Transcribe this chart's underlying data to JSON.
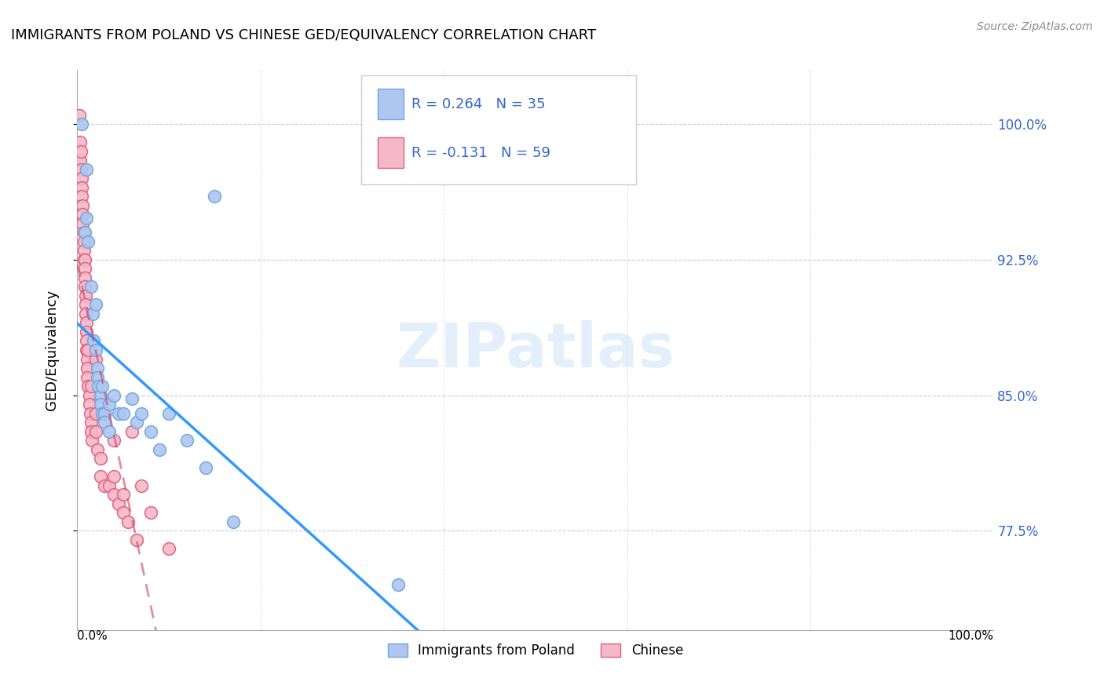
{
  "title": "IMMIGRANTS FROM POLAND VS CHINESE GED/EQUIVALENCY CORRELATION CHART",
  "source": "Source: ZipAtlas.com",
  "ylabel": "GED/Equivalency",
  "yticks": [
    77.5,
    85.0,
    92.5,
    100.0
  ],
  "ytick_labels": [
    "77.5%",
    "85.0%",
    "92.5%",
    "100.0%"
  ],
  "xlim": [
    0.0,
    1.0
  ],
  "ylim": [
    72.0,
    103.0
  ],
  "watermark": "ZIPatlas",
  "poland_color": "#aec6f0",
  "poland_edge_color": "#6fa8dc",
  "chinese_color": "#f4b8c8",
  "chinese_edge_color": "#e06080",
  "poland_scatter": [
    [
      0.005,
      100.0
    ],
    [
      0.008,
      94.0
    ],
    [
      0.01,
      97.5
    ],
    [
      0.01,
      94.8
    ],
    [
      0.012,
      93.5
    ],
    [
      0.015,
      91.0
    ],
    [
      0.017,
      89.5
    ],
    [
      0.018,
      88.0
    ],
    [
      0.02,
      90.0
    ],
    [
      0.02,
      87.5
    ],
    [
      0.022,
      86.5
    ],
    [
      0.022,
      86.0
    ],
    [
      0.023,
      85.5
    ],
    [
      0.025,
      85.0
    ],
    [
      0.025,
      84.5
    ],
    [
      0.027,
      85.5
    ],
    [
      0.027,
      84.0
    ],
    [
      0.03,
      84.0
    ],
    [
      0.03,
      83.5
    ],
    [
      0.035,
      83.0
    ],
    [
      0.035,
      84.5
    ],
    [
      0.04,
      85.0
    ],
    [
      0.045,
      84.0
    ],
    [
      0.05,
      84.0
    ],
    [
      0.06,
      84.8
    ],
    [
      0.065,
      83.5
    ],
    [
      0.07,
      84.0
    ],
    [
      0.08,
      83.0
    ],
    [
      0.09,
      82.0
    ],
    [
      0.1,
      84.0
    ],
    [
      0.12,
      82.5
    ],
    [
      0.14,
      81.0
    ],
    [
      0.17,
      78.0
    ],
    [
      0.35,
      74.5
    ],
    [
      0.15,
      96.0
    ]
  ],
  "chinese_scatter": [
    [
      0.002,
      100.5
    ],
    [
      0.003,
      99.0
    ],
    [
      0.003,
      98.0
    ],
    [
      0.004,
      98.5
    ],
    [
      0.004,
      97.5
    ],
    [
      0.005,
      97.0
    ],
    [
      0.005,
      96.5
    ],
    [
      0.005,
      96.0
    ],
    [
      0.006,
      95.5
    ],
    [
      0.006,
      95.0
    ],
    [
      0.006,
      94.5
    ],
    [
      0.007,
      94.0
    ],
    [
      0.007,
      93.5
    ],
    [
      0.007,
      93.0
    ],
    [
      0.007,
      92.5
    ],
    [
      0.008,
      92.5
    ],
    [
      0.008,
      92.0
    ],
    [
      0.008,
      91.5
    ],
    [
      0.008,
      91.0
    ],
    [
      0.009,
      90.5
    ],
    [
      0.009,
      90.0
    ],
    [
      0.009,
      89.5
    ],
    [
      0.01,
      89.0
    ],
    [
      0.01,
      88.5
    ],
    [
      0.01,
      88.0
    ],
    [
      0.01,
      87.5
    ],
    [
      0.011,
      87.0
    ],
    [
      0.011,
      86.5
    ],
    [
      0.011,
      86.0
    ],
    [
      0.012,
      87.5
    ],
    [
      0.012,
      85.5
    ],
    [
      0.013,
      85.0
    ],
    [
      0.013,
      84.5
    ],
    [
      0.014,
      84.0
    ],
    [
      0.015,
      83.5
    ],
    [
      0.015,
      83.0
    ],
    [
      0.015,
      85.5
    ],
    [
      0.016,
      82.5
    ],
    [
      0.02,
      87.0
    ],
    [
      0.02,
      84.0
    ],
    [
      0.02,
      83.0
    ],
    [
      0.022,
      82.0
    ],
    [
      0.025,
      81.5
    ],
    [
      0.025,
      80.5
    ],
    [
      0.03,
      80.0
    ],
    [
      0.03,
      84.0
    ],
    [
      0.035,
      80.0
    ],
    [
      0.04,
      80.5
    ],
    [
      0.04,
      79.5
    ],
    [
      0.04,
      82.5
    ],
    [
      0.045,
      79.0
    ],
    [
      0.05,
      79.5
    ],
    [
      0.05,
      78.5
    ],
    [
      0.055,
      78.0
    ],
    [
      0.06,
      83.0
    ],
    [
      0.065,
      77.0
    ],
    [
      0.07,
      80.0
    ],
    [
      0.08,
      78.5
    ],
    [
      0.1,
      76.5
    ]
  ]
}
